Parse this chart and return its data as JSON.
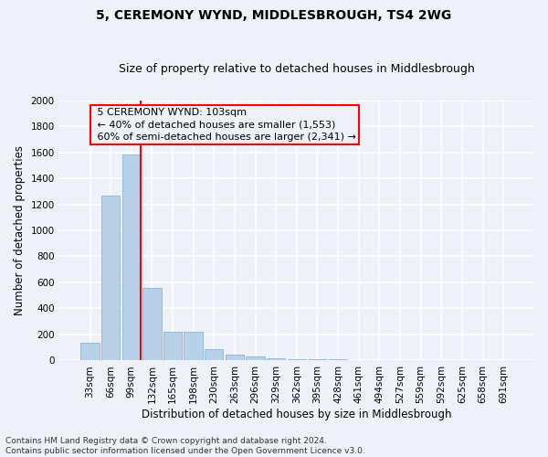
{
  "title": "5, CEREMONY WYND, MIDDLESBROUGH, TS4 2WG",
  "subtitle": "Size of property relative to detached houses in Middlesbrough",
  "xlabel": "Distribution of detached houses by size in Middlesbrough",
  "ylabel": "Number of detached properties",
  "bar_color": "#b8d0e8",
  "bar_edgecolor": "#7aafd4",
  "categories": [
    "33sqm",
    "66sqm",
    "99sqm",
    "132sqm",
    "165sqm",
    "198sqm",
    "230sqm",
    "263sqm",
    "296sqm",
    "329sqm",
    "362sqm",
    "395sqm",
    "428sqm",
    "461sqm",
    "494sqm",
    "527sqm",
    "559sqm",
    "592sqm",
    "625sqm",
    "658sqm",
    "691sqm"
  ],
  "values": [
    140,
    1270,
    1580,
    560,
    220,
    220,
    90,
    45,
    30,
    20,
    10,
    10,
    10,
    5,
    5,
    0,
    0,
    0,
    0,
    0,
    0
  ],
  "ylim": [
    0,
    2000
  ],
  "yticks": [
    0,
    200,
    400,
    600,
    800,
    1000,
    1200,
    1400,
    1600,
    1800,
    2000
  ],
  "property_label": "5 CEREMONY WYND: 103sqm",
  "smaller_pct": 40,
  "smaller_count": 1553,
  "larger_pct": 60,
  "larger_count": 2341,
  "vline_bin_index": 2,
  "footer_line1": "Contains HM Land Registry data © Crown copyright and database right 2024.",
  "footer_line2": "Contains public sector information licensed under the Open Government Licence v3.0.",
  "background_color": "#eef2f8",
  "grid_color": "#ffffff",
  "title_fontsize": 10,
  "subtitle_fontsize": 9,
  "axis_label_fontsize": 8.5,
  "tick_fontsize": 7.5,
  "annotation_fontsize": 8,
  "footer_fontsize": 6.5
}
